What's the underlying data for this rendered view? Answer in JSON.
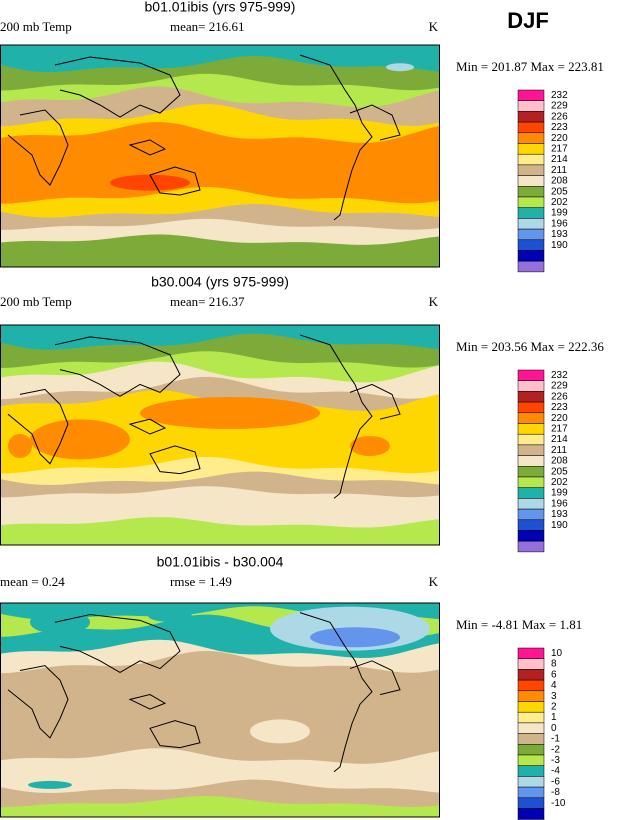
{
  "season": "DJF",
  "panels": [
    {
      "title": "b01.01ibis (yrs 975-999)",
      "left": "200 mb Temp",
      "center": "mean= 216.61",
      "units": "K",
      "minmax": "Min = 201.87 Max = 223.81",
      "colorbar": {
        "labels": [
          232,
          229,
          226,
          223,
          220,
          217,
          214,
          211,
          208,
          205,
          202,
          199,
          196,
          193,
          190
        ],
        "colors": [
          "#ff1493",
          "#ffc0cb",
          "#b22222",
          "#ff4500",
          "#ff8c00",
          "#ffd700",
          "#ffec8b",
          "#d2b48c",
          "#f5e6c8",
          "#7cab3a",
          "#b4e84c",
          "#20b2aa",
          "#add8e6",
          "#6495ed",
          "#1e50d2",
          "#0000b4",
          "#9370db"
        ]
      }
    },
    {
      "title": "b30.004 (yrs 975-999)",
      "left": "200 mb Temp",
      "center": "mean= 216.37",
      "units": "K",
      "minmax": "Min = 203.56 Max = 222.36",
      "colorbar": {
        "labels": [
          232,
          229,
          226,
          223,
          220,
          217,
          214,
          211,
          208,
          205,
          202,
          199,
          196,
          193,
          190
        ],
        "colors": [
          "#ff1493",
          "#ffc0cb",
          "#b22222",
          "#ff4500",
          "#ff8c00",
          "#ffd700",
          "#ffec8b",
          "#d2b48c",
          "#f5e6c8",
          "#7cab3a",
          "#b4e84c",
          "#20b2aa",
          "#add8e6",
          "#6495ed",
          "#1e50d2",
          "#0000b4",
          "#9370db"
        ]
      }
    },
    {
      "title": "b01.01ibis - b30.004",
      "left": "mean =   0.24",
      "center": "rmse =   1.49",
      "units": "K",
      "minmax": "Min =  -4.81 Max =   1.81",
      "colorbar": {
        "labels": [
          10,
          8,
          6,
          4,
          3,
          2,
          1,
          0,
          -1,
          -2,
          -3,
          -4,
          -6,
          -8,
          -10
        ],
        "colors": [
          "#ff1493",
          "#ffc0cb",
          "#b22222",
          "#ff4500",
          "#ff8c00",
          "#ffd700",
          "#ffec8b",
          "#f5e6c8",
          "#d2b48c",
          "#7cab3a",
          "#b4e84c",
          "#20b2aa",
          "#add8e6",
          "#6495ed",
          "#1e50d2",
          "#0000b4",
          "#9370db"
        ]
      }
    }
  ]
}
